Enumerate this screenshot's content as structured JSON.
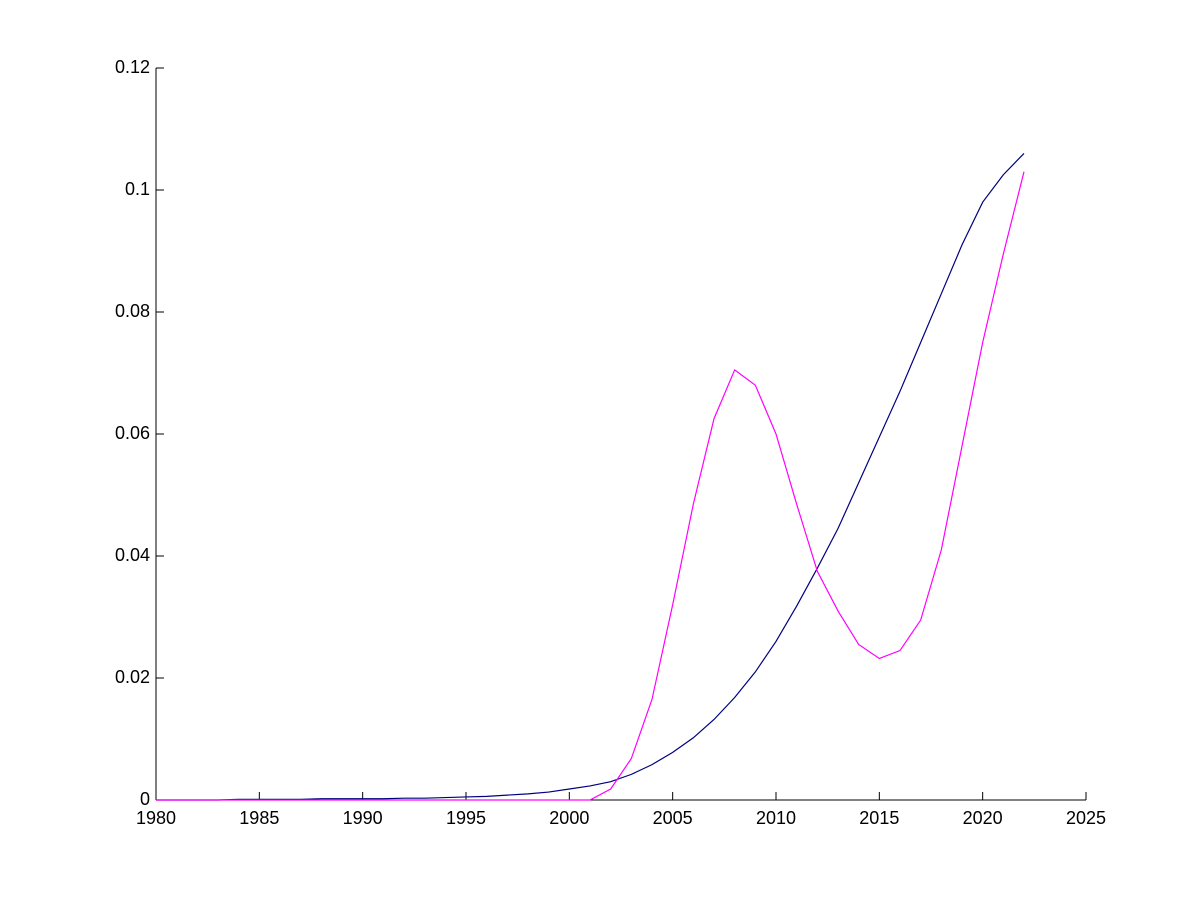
{
  "chart_data": {
    "type": "line",
    "x": [
      1980,
      1981,
      1982,
      1983,
      1984,
      1985,
      1986,
      1987,
      1988,
      1989,
      1990,
      1991,
      1992,
      1993,
      1994,
      1995,
      1996,
      1997,
      1998,
      1999,
      2000,
      2001,
      2002,
      2003,
      2004,
      2005,
      2006,
      2007,
      2008,
      2009,
      2010,
      2011,
      2012,
      2013,
      2014,
      2015,
      2016,
      2017,
      2018,
      2019,
      2020,
      2021,
      2022
    ],
    "series": [
      {
        "color": "#00007f",
        "values": [
          0,
          0,
          0,
          0,
          0.0001,
          0.0001,
          0.0001,
          0.0001,
          0.0002,
          0.0002,
          0.0002,
          0.0002,
          0.0003,
          0.0003,
          0.0004,
          0.0005,
          0.0006,
          0.0008,
          0.001,
          0.0013,
          0.0018,
          0.0023,
          0.003,
          0.0042,
          0.0058,
          0.0078,
          0.0102,
          0.0132,
          0.0168,
          0.021,
          0.026,
          0.0318,
          0.038,
          0.0445,
          0.052,
          0.0595,
          0.067,
          0.075,
          0.083,
          0.091,
          0.098,
          0.1025,
          0.106
        ]
      },
      {
        "color": "#ff00ff",
        "values": [
          0,
          0,
          0,
          0,
          0,
          0,
          0,
          0,
          0,
          0,
          0,
          0,
          0,
          0,
          0,
          0,
          0,
          0,
          0,
          0,
          0,
          0,
          0.0018,
          0.0068,
          0.0165,
          0.032,
          0.0485,
          0.0625,
          0.0705,
          0.068,
          0.06,
          0.0485,
          0.0375,
          0.031,
          0.0255,
          0.0232,
          0.0245,
          0.0295,
          0.041,
          0.058,
          0.075,
          0.0895,
          0.103
        ]
      }
    ],
    "xlim": [
      1980,
      2025
    ],
    "xticks": [
      1980,
      1985,
      1990,
      1995,
      2000,
      2005,
      2010,
      2015,
      2020,
      2025
    ],
    "ylim": [
      0,
      0.12
    ],
    "yticks": [
      0,
      0.02,
      0.04,
      0.06,
      0.08,
      0.1,
      0.12
    ]
  }
}
